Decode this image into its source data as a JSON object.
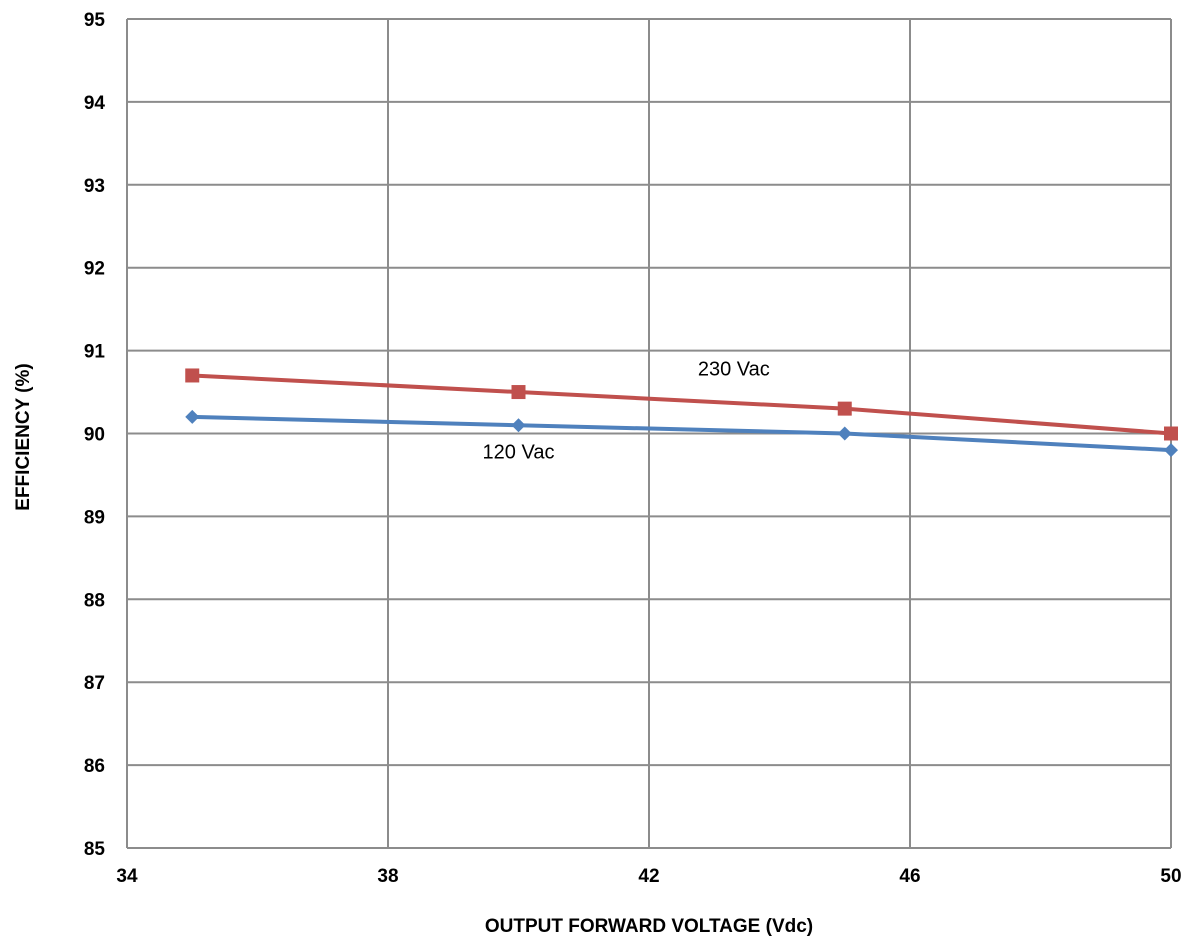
{
  "chart_data": {
    "type": "line",
    "title": "",
    "xlabel": "OUTPUT FORWARD VOLTAGE (Vdc)",
    "ylabel": "EFFICIENCY (%)",
    "xlim": [
      34,
      50
    ],
    "ylim": [
      85,
      95
    ],
    "x_ticks": [
      34,
      38,
      42,
      46,
      50
    ],
    "y_ticks": [
      85,
      86,
      87,
      88,
      89,
      90,
      91,
      92,
      93,
      94,
      95
    ],
    "grid": true,
    "legend": "none",
    "series": [
      {
        "name": "230 Vac",
        "color": "#c0504d",
        "marker": "square",
        "x": [
          35,
          40,
          45,
          50
        ],
        "y": [
          90.7,
          90.5,
          90.3,
          90.0
        ]
      },
      {
        "name": "120 Vac",
        "color": "#4f81bd",
        "marker": "diamond",
        "x": [
          35,
          40,
          45,
          50
        ],
        "y": [
          90.2,
          90.1,
          90.0,
          89.8
        ]
      }
    ],
    "annotations": [
      {
        "text": "230 Vac",
        "x": 43.3,
        "y": 90.7
      },
      {
        "text": "120 Vac",
        "x": 40.0,
        "y": 89.7
      }
    ]
  }
}
